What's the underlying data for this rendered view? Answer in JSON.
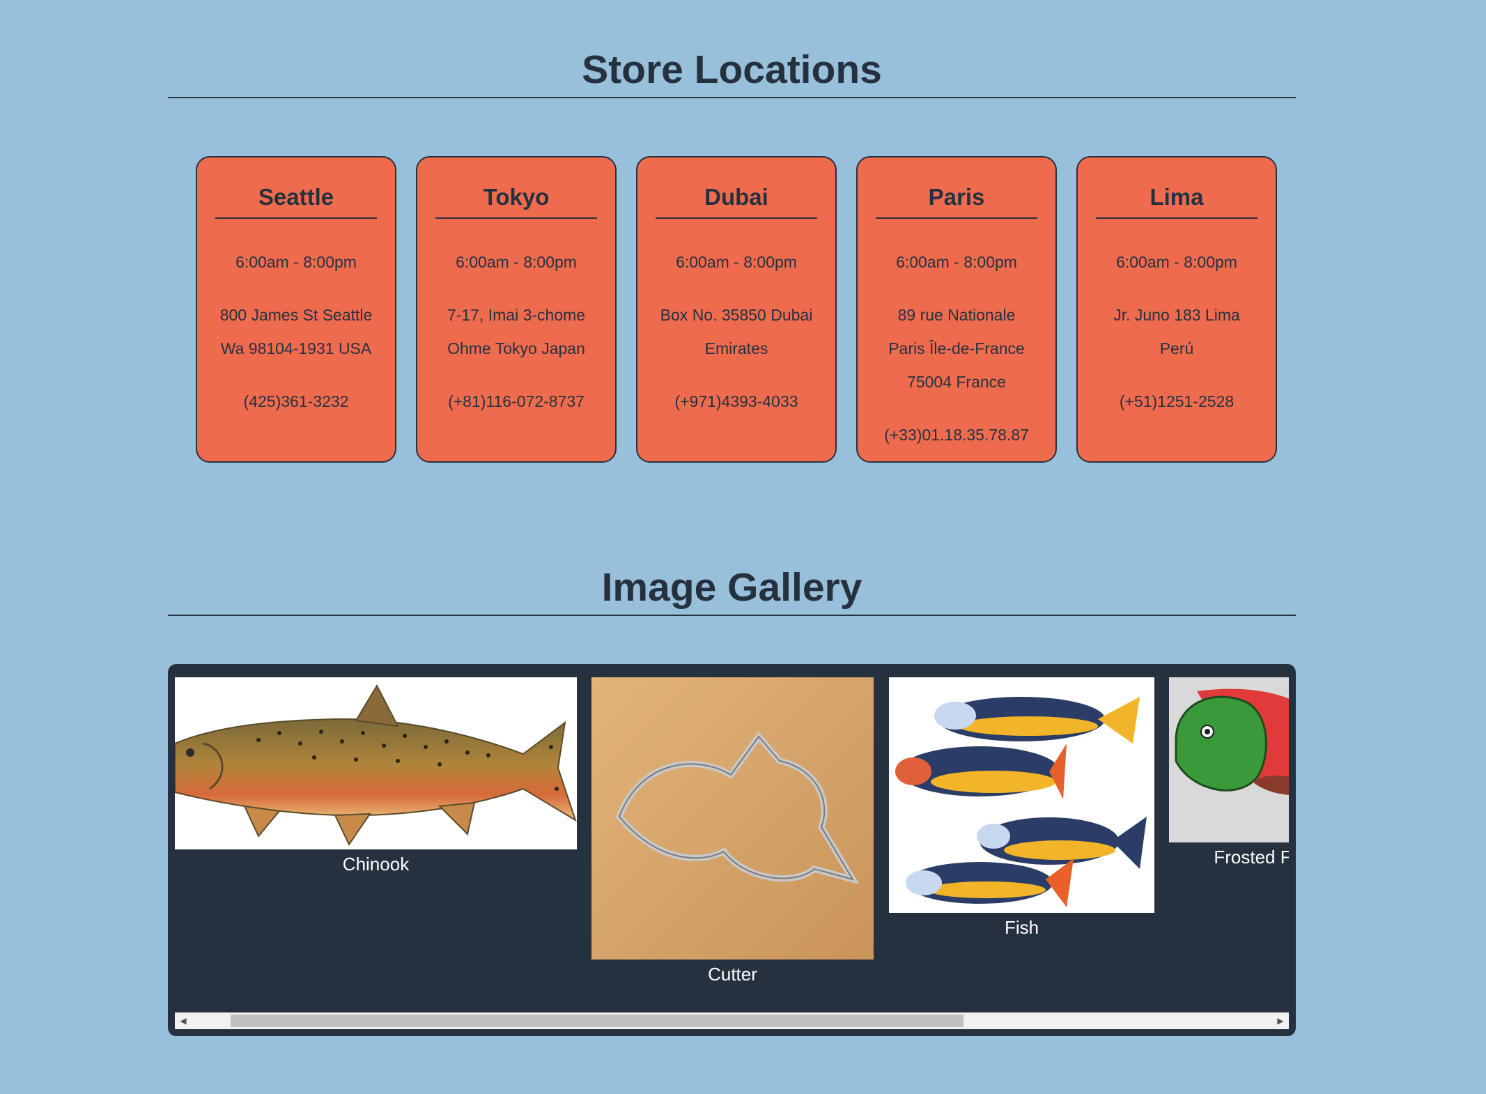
{
  "locations": {
    "title": "Store Locations",
    "stores": [
      {
        "city": "Seattle",
        "hours": "6:00am - 8:00pm",
        "address": [
          "800 James St Seattle",
          "Wa 98104-1931 USA"
        ],
        "phone": "(425)361-3232"
      },
      {
        "city": "Tokyo",
        "hours": "6:00am - 8:00pm",
        "address": [
          "7-17, Imai 3-chome",
          "Ohme Tokyo Japan"
        ],
        "phone": "(+81)116-072-8737"
      },
      {
        "city": "Dubai",
        "hours": "6:00am - 8:00pm",
        "address": [
          "Box No. 35850 Dubai",
          "Emirates"
        ],
        "phone": "(+971)4393-4033"
      },
      {
        "city": "Paris",
        "hours": "6:00am - 8:00pm",
        "address": [
          "89 rue Nationale",
          "Paris Île-de-France",
          "75004 France"
        ],
        "phone": "(+33)01.18.35.78.87"
      },
      {
        "city": "Lima",
        "hours": "6:00am - 8:00pm",
        "address": [
          "Jr. Juno 183 Lima",
          "Perú"
        ],
        "phone": "(+51)1251-2528"
      }
    ]
  },
  "gallery": {
    "title": "Image Gallery",
    "images": [
      {
        "caption": "Chinook",
        "icon": "chinook-salmon-illustration"
      },
      {
        "caption": "Cutter",
        "icon": "fish-cookie-cutter-photo"
      },
      {
        "caption": "Fish",
        "icon": "painted-fish-cookies-photo"
      },
      {
        "caption": "Frosted F",
        "icon": "frosted-fish-cookie-photo"
      }
    ],
    "scroll_fraction": 0.66
  },
  "colors": {
    "background": "#99c0da",
    "card": "#ef6b4e",
    "dark": "#263140"
  }
}
